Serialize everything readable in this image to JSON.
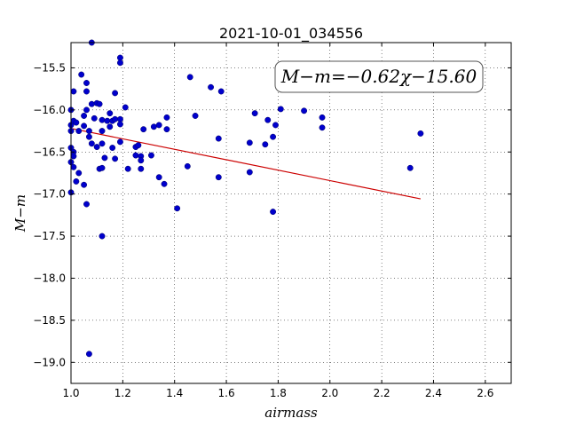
{
  "chart_data": {
    "type": "scatter",
    "title": "2021-10-01_034556",
    "xlabel": "airmass",
    "ylabel": "M−m",
    "xlim": [
      1.0,
      2.7
    ],
    "ylim": [
      -19.25,
      -15.2
    ],
    "y_inverted": true,
    "grid": true,
    "xticks": [
      1.0,
      1.2,
      1.4,
      1.6,
      1.8,
      2.0,
      2.2,
      2.4,
      2.6
    ],
    "xtick_labels": [
      "1.0",
      "1.2",
      "1.4",
      "1.6",
      "1.8",
      "2.0",
      "2.2",
      "2.4",
      "2.6"
    ],
    "yticks": [
      -15.5,
      -16.0,
      -16.5,
      -17.0,
      -17.5,
      -18.0,
      -18.5,
      -19.0
    ],
    "ytick_labels": [
      "−15.5",
      "−16.0",
      "−16.5",
      "−17.0",
      "−17.5",
      "−18.0",
      "−18.5",
      "−19.0"
    ],
    "annotation": "M−m=−0.62χ−15.60",
    "fit": {
      "slope": -0.62,
      "intercept": -15.6,
      "x_range": [
        1.0,
        2.35
      ],
      "color": "#cc0000"
    },
    "point_color": "#0000cc",
    "points": [
      [
        1.0,
        -16.18
      ],
      [
        1.0,
        -16.25
      ],
      [
        1.0,
        -16.45
      ],
      [
        1.0,
        -16.62
      ],
      [
        1.0,
        -16.98
      ],
      [
        1.0,
        -16.0
      ],
      [
        1.01,
        -16.13
      ],
      [
        1.01,
        -16.5
      ],
      [
        1.01,
        -16.55
      ],
      [
        1.01,
        -16.68
      ],
      [
        1.01,
        -15.78
      ],
      [
        1.02,
        -16.15
      ],
      [
        1.02,
        -16.85
      ],
      [
        1.03,
        -16.25
      ],
      [
        1.03,
        -16.75
      ],
      [
        1.04,
        -15.58
      ],
      [
        1.05,
        -16.07
      ],
      [
        1.05,
        -16.19
      ],
      [
        1.05,
        -16.89
      ],
      [
        1.06,
        -15.68
      ],
      [
        1.06,
        -15.78
      ],
      [
        1.06,
        -16.0
      ],
      [
        1.06,
        -17.12
      ],
      [
        1.07,
        -16.25
      ],
      [
        1.07,
        -16.32
      ],
      [
        1.07,
        -18.9
      ],
      [
        1.08,
        -16.4
      ],
      [
        1.08,
        -15.93
      ],
      [
        1.08,
        -15.2
      ],
      [
        1.09,
        -16.1
      ],
      [
        1.1,
        -16.44
      ],
      [
        1.1,
        -15.92
      ],
      [
        1.11,
        -16.7
      ],
      [
        1.11,
        -15.93
      ],
      [
        1.12,
        -16.12
      ],
      [
        1.12,
        -16.4
      ],
      [
        1.12,
        -16.69
      ],
      [
        1.12,
        -16.25
      ],
      [
        1.12,
        -17.5
      ],
      [
        1.13,
        -16.57
      ],
      [
        1.14,
        -16.13
      ],
      [
        1.15,
        -16.04
      ],
      [
        1.15,
        -16.2
      ],
      [
        1.16,
        -16.13
      ],
      [
        1.16,
        -16.45
      ],
      [
        1.17,
        -16.11
      ],
      [
        1.17,
        -15.8
      ],
      [
        1.17,
        -16.58
      ],
      [
        1.19,
        -16.38
      ],
      [
        1.19,
        -16.11
      ],
      [
        1.19,
        -16.17
      ],
      [
        1.19,
        -15.38
      ],
      [
        1.19,
        -15.44
      ],
      [
        1.21,
        -15.97
      ],
      [
        1.22,
        -16.7
      ],
      [
        1.25,
        -16.44
      ],
      [
        1.25,
        -16.54
      ],
      [
        1.26,
        -16.42
      ],
      [
        1.27,
        -16.55
      ],
      [
        1.27,
        -16.6
      ],
      [
        1.27,
        -16.7
      ],
      [
        1.28,
        -16.23
      ],
      [
        1.31,
        -16.54
      ],
      [
        1.32,
        -16.2
      ],
      [
        1.34,
        -16.18
      ],
      [
        1.34,
        -16.8
      ],
      [
        1.36,
        -16.88
      ],
      [
        1.37,
        -16.09
      ],
      [
        1.37,
        -16.23
      ],
      [
        1.41,
        -17.17
      ],
      [
        1.45,
        -16.67
      ],
      [
        1.46,
        -15.61
      ],
      [
        1.48,
        -16.07
      ],
      [
        1.54,
        -15.73
      ],
      [
        1.57,
        -16.34
      ],
      [
        1.57,
        -16.8
      ],
      [
        1.58,
        -15.78
      ],
      [
        1.69,
        -16.39
      ],
      [
        1.69,
        -16.74
      ],
      [
        1.71,
        -16.04
      ],
      [
        1.75,
        -16.41
      ],
      [
        1.76,
        -16.12
      ],
      [
        1.78,
        -16.32
      ],
      [
        1.78,
        -17.21
      ],
      [
        1.79,
        -16.18
      ],
      [
        1.81,
        -15.99
      ],
      [
        1.9,
        -16.01
      ],
      [
        1.97,
        -16.09
      ],
      [
        1.97,
        -16.21
      ],
      [
        2.31,
        -16.69
      ],
      [
        2.35,
        -16.28
      ]
    ]
  }
}
